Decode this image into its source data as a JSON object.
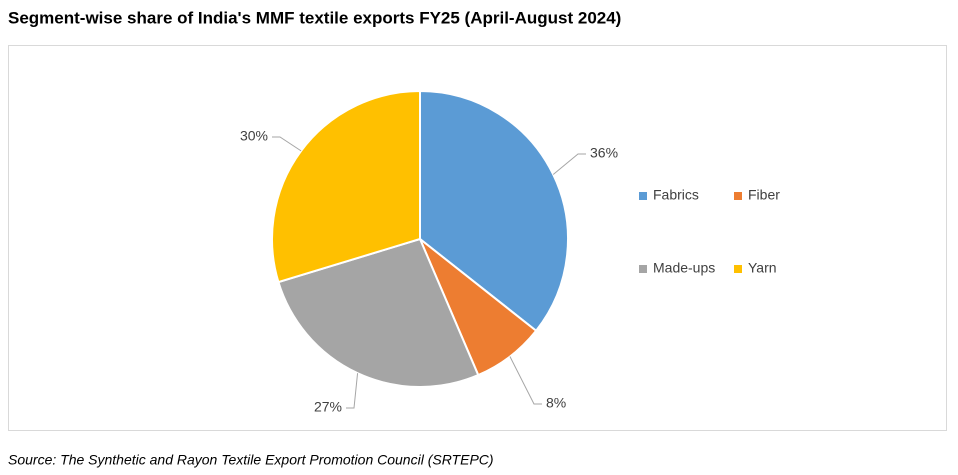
{
  "chart_data": {
    "type": "pie",
    "title": "Segment-wise share of India's MMF textile exports FY25 (April-August 2024)",
    "categories": [
      "Fabrics",
      "Fiber",
      "Made-ups",
      "Yarn"
    ],
    "values": [
      36,
      8,
      27,
      30
    ],
    "value_labels": [
      "36%",
      "8%",
      "27%",
      "30%"
    ],
    "colors": [
      "#5b9bd5",
      "#ed7d31",
      "#a5a5a5",
      "#ffc000"
    ],
    "legend": "right",
    "source": "Source: The Synthetic and Rayon Textile Export Promotion Council (SRTEPC)"
  }
}
